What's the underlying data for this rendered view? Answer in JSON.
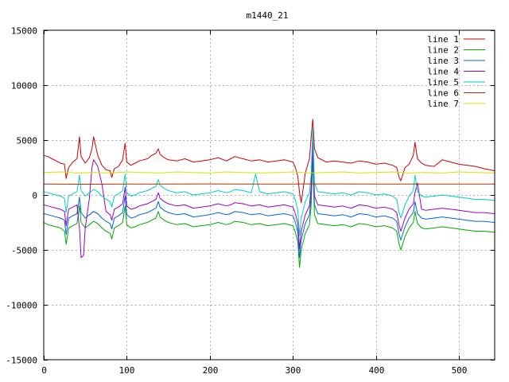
{
  "chart_data": {
    "type": "line",
    "title": "m1440_21",
    "xlabel": "",
    "ylabel": "",
    "xlim": [
      0,
      543
    ],
    "ylim": [
      -15000,
      15000
    ],
    "xticks": [
      0,
      100,
      200,
      300,
      400,
      500
    ],
    "yticks": [
      -15000,
      -10000,
      -5000,
      0,
      5000,
      10000,
      15000
    ],
    "grid": true,
    "legend_position": "top-right",
    "series": [
      {
        "name": "line 1",
        "color": "#cc0000",
        "x": [
          0,
          5,
          10,
          15,
          20,
          25,
          27,
          30,
          35,
          40,
          43,
          45,
          50,
          55,
          58,
          60,
          65,
          70,
          75,
          80,
          82,
          85,
          90,
          95,
          98,
          100,
          105,
          110,
          115,
          120,
          125,
          130,
          135,
          138,
          140,
          145,
          150,
          160,
          170,
          180,
          190,
          200,
          210,
          220,
          225,
          230,
          240,
          250,
          260,
          270,
          280,
          290,
          300,
          303,
          306,
          308,
          310,
          315,
          320,
          322,
          324,
          326,
          330,
          340,
          350,
          360,
          370,
          380,
          390,
          400,
          410,
          420,
          425,
          428,
          430,
          435,
          440,
          445,
          447,
          450,
          455,
          460,
          470,
          480,
          490,
          500,
          510,
          520,
          530,
          543
        ],
        "y": [
          3600,
          3500,
          3300,
          3100,
          2900,
          2800,
          1500,
          2500,
          3000,
          3300,
          5300,
          3500,
          2900,
          3400,
          4200,
          5300,
          3600,
          2700,
          2300,
          2200,
          1600,
          2400,
          2600,
          3200,
          4700,
          3000,
          2700,
          2900,
          3100,
          3200,
          3300,
          3600,
          3800,
          4200,
          3700,
          3400,
          3200,
          3100,
          3300,
          3000,
          3100,
          3200,
          3400,
          3100,
          3300,
          3500,
          3300,
          3100,
          3200,
          3000,
          3100,
          3200,
          3000,
          2500,
          1700,
          200,
          -700,
          2000,
          3300,
          5200,
          6900,
          4200,
          3400,
          3000,
          3100,
          3000,
          2900,
          3100,
          3000,
          2800,
          2900,
          2700,
          2500,
          1600,
          1300,
          2500,
          2800,
          3600,
          4800,
          3300,
          2900,
          2700,
          2600,
          3200,
          3000,
          2800,
          2700,
          2600,
          2400,
          2200
        ]
      },
      {
        "name": "line 2",
        "color": "#00aa00",
        "x": [
          0,
          5,
          10,
          15,
          20,
          25,
          27,
          30,
          35,
          40,
          43,
          45,
          50,
          55,
          60,
          65,
          70,
          75,
          80,
          82,
          85,
          90,
          95,
          98,
          100,
          105,
          110,
          115,
          120,
          125,
          130,
          135,
          138,
          140,
          145,
          150,
          160,
          170,
          180,
          190,
          200,
          210,
          220,
          225,
          230,
          240,
          250,
          260,
          270,
          280,
          290,
          300,
          303,
          306,
          308,
          310,
          315,
          320,
          322,
          324,
          326,
          330,
          340,
          350,
          360,
          370,
          380,
          390,
          400,
          410,
          420,
          425,
          428,
          430,
          435,
          440,
          445,
          447,
          450,
          455,
          460,
          470,
          480,
          490,
          500,
          510,
          520,
          530,
          543
        ],
        "y": [
          -2500,
          -2700,
          -2800,
          -2900,
          -3000,
          -3300,
          -4500,
          -3000,
          -2800,
          -2600,
          -1000,
          -2500,
          -3000,
          -2700,
          -2400,
          -2600,
          -3000,
          -3300,
          -3500,
          -4000,
          -3000,
          -2800,
          -2500,
          -1000,
          -2700,
          -3000,
          -2900,
          -2700,
          -2600,
          -2500,
          -2300,
          -2100,
          -1500,
          -2000,
          -2300,
          -2500,
          -2700,
          -2600,
          -2900,
          -2800,
          -2700,
          -2500,
          -2700,
          -2600,
          -2400,
          -2500,
          -2700,
          -2600,
          -2800,
          -2700,
          -2600,
          -2800,
          -3400,
          -4300,
          -6600,
          -5000,
          -3500,
          -2700,
          -1000,
          3300,
          -1800,
          -2600,
          -2700,
          -2800,
          -2700,
          -2900,
          -2600,
          -2700,
          -2900,
          -2800,
          -3000,
          -3300,
          -4500,
          -5000,
          -3800,
          -3000,
          -2500,
          -1500,
          -2600,
          -3000,
          -3100,
          -3000,
          -2900,
          -3000,
          -3100,
          -3200,
          -3300,
          -3300,
          -3400
        ]
      },
      {
        "name": "line 3",
        "color": "#0066dd",
        "x": [
          0,
          5,
          10,
          15,
          20,
          25,
          27,
          30,
          35,
          40,
          43,
          45,
          50,
          55,
          60,
          65,
          70,
          75,
          80,
          82,
          85,
          90,
          95,
          98,
          100,
          105,
          110,
          115,
          120,
          125,
          130,
          135,
          138,
          140,
          145,
          150,
          160,
          170,
          180,
          190,
          200,
          210,
          220,
          225,
          230,
          240,
          250,
          260,
          270,
          280,
          290,
          300,
          303,
          306,
          308,
          310,
          315,
          320,
          322,
          324,
          326,
          330,
          340,
          350,
          360,
          370,
          380,
          390,
          400,
          410,
          420,
          425,
          428,
          430,
          435,
          440,
          445,
          447,
          450,
          455,
          460,
          470,
          480,
          490,
          500,
          510,
          520,
          530,
          543
        ],
        "y": [
          -1700,
          -1800,
          -1900,
          -2000,
          -2100,
          -2300,
          -3600,
          -2100,
          -1900,
          -1700,
          -200,
          -1600,
          -2100,
          -1800,
          -1500,
          -1700,
          -2100,
          -2400,
          -2600,
          -3100,
          -2100,
          -1900,
          -1600,
          -100,
          -1800,
          -2100,
          -2000,
          -1800,
          -1700,
          -1600,
          -1400,
          -1200,
          -600,
          -1100,
          -1400,
          -1600,
          -1800,
          -1700,
          -2000,
          -1900,
          -1800,
          -1600,
          -1800,
          -1700,
          -1500,
          -1600,
          -1800,
          -1700,
          -1900,
          -1800,
          -1700,
          -1900,
          -2500,
          -3400,
          -5700,
          -4100,
          -2600,
          -1800,
          -100,
          4100,
          -900,
          -1700,
          -1800,
          -1900,
          -1800,
          -2000,
          -1700,
          -1800,
          -2000,
          -1900,
          -2100,
          -2400,
          -3600,
          -4100,
          -2900,
          -2100,
          -1600,
          -600,
          -1700,
          -2100,
          -2200,
          -2100,
          -2000,
          -2100,
          -2200,
          -2300,
          -2400,
          -2400,
          -2500
        ]
      },
      {
        "name": "line 4",
        "color": "#9900cc",
        "x": [
          0,
          5,
          10,
          15,
          20,
          25,
          27,
          30,
          35,
          40,
          43,
          45,
          48,
          50,
          55,
          58,
          60,
          65,
          70,
          75,
          80,
          82,
          85,
          90,
          95,
          98,
          100,
          105,
          110,
          115,
          120,
          125,
          130,
          135,
          138,
          140,
          145,
          150,
          160,
          170,
          180,
          190,
          200,
          210,
          220,
          225,
          230,
          240,
          250,
          260,
          270,
          280,
          290,
          300,
          303,
          306,
          308,
          310,
          315,
          320,
          322,
          324,
          326,
          330,
          340,
          350,
          360,
          370,
          380,
          390,
          400,
          410,
          420,
          425,
          428,
          430,
          435,
          440,
          445,
          447,
          450,
          455,
          460,
          470,
          480,
          490,
          500,
          510,
          520,
          530,
          543
        ],
        "y": [
          -900,
          -1000,
          -1100,
          -1200,
          -1300,
          -1500,
          -2800,
          -1300,
          -1100,
          -900,
          -3000,
          -5700,
          -5500,
          -3000,
          -300,
          2500,
          3200,
          2600,
          1000,
          -1500,
          -1800,
          -2300,
          -1300,
          -1100,
          -800,
          700,
          -1000,
          -1300,
          -1200,
          -1000,
          -900,
          -800,
          -600,
          -400,
          200,
          -300,
          -600,
          -800,
          -1000,
          -900,
          -1200,
          -1100,
          -1000,
          -800,
          -1000,
          -900,
          -700,
          -800,
          -1000,
          -900,
          -1100,
          -1000,
          -900,
          -1100,
          -1700,
          -2600,
          -4900,
          -3300,
          -1800,
          -1000,
          700,
          4900,
          -100,
          -900,
          -1000,
          -1100,
          -1000,
          -1200,
          -900,
          -1000,
          -1200,
          -1100,
          -1300,
          -1600,
          -2800,
          -3300,
          -2100,
          -1300,
          -800,
          200,
          1100,
          -1300,
          -1400,
          -1300,
          -1200,
          -1300,
          -1400,
          -1500,
          -1600,
          -1600,
          -1700
        ]
      },
      {
        "name": "line 5",
        "color": "#00cccc",
        "x": [
          0,
          5,
          10,
          15,
          20,
          25,
          27,
          30,
          35,
          40,
          43,
          45,
          50,
          55,
          60,
          65,
          70,
          75,
          80,
          82,
          85,
          90,
          95,
          98,
          100,
          105,
          110,
          115,
          120,
          125,
          130,
          135,
          138,
          140,
          145,
          150,
          160,
          170,
          180,
          190,
          200,
          210,
          220,
          225,
          230,
          240,
          250,
          255,
          260,
          270,
          280,
          290,
          300,
          303,
          306,
          308,
          310,
          315,
          320,
          322,
          324,
          326,
          330,
          340,
          350,
          360,
          370,
          380,
          390,
          400,
          410,
          420,
          425,
          428,
          430,
          435,
          440,
          445,
          447,
          450,
          455,
          460,
          470,
          480,
          490,
          500,
          510,
          520,
          530,
          543
        ],
        "y": [
          300,
          200,
          100,
          0,
          -100,
          -300,
          -1600,
          -100,
          100,
          300,
          1800,
          400,
          -100,
          200,
          500,
          300,
          -100,
          -400,
          -600,
          -1100,
          -100,
          100,
          400,
          1900,
          200,
          -100,
          0,
          200,
          300,
          400,
          600,
          800,
          1400,
          900,
          600,
          400,
          200,
          300,
          0,
          100,
          200,
          400,
          200,
          300,
          500,
          400,
          200,
          1900,
          300,
          100,
          200,
          300,
          100,
          -500,
          -1400,
          -3700,
          -2100,
          -600,
          200,
          1900,
          6100,
          1100,
          300,
          200,
          100,
          200,
          0,
          300,
          200,
          0,
          100,
          -100,
          -400,
          -1600,
          -2100,
          -900,
          -100,
          400,
          1800,
          300,
          -100,
          -200,
          -100,
          0,
          -100,
          -200,
          -300,
          -400,
          -400,
          -500
        ]
      },
      {
        "name": "line 6",
        "color": "#aa3300",
        "x": [
          0,
          50,
          100,
          150,
          200,
          250,
          300,
          350,
          400,
          450,
          500,
          543
        ],
        "y": [
          1000,
          980,
          1000,
          990,
          1010,
          990,
          1000,
          1010,
          990,
          1000,
          990,
          1000
        ]
      },
      {
        "name": "line 7",
        "color": "#dddd00",
        "x": [
          0,
          20,
          40,
          60,
          80,
          100,
          120,
          140,
          160,
          180,
          200,
          220,
          240,
          260,
          280,
          300,
          320,
          340,
          360,
          380,
          400,
          420,
          440,
          460,
          480,
          500,
          520,
          543
        ],
        "y": [
          2050,
          2100,
          2000,
          2050,
          2000,
          2100,
          2050,
          2000,
          2100,
          2050,
          2000,
          2100,
          2050,
          2000,
          2050,
          2100,
          2000,
          2050,
          2100,
          2000,
          2050,
          2100,
          2000,
          2050,
          2000,
          2100,
          2050,
          2000
        ]
      }
    ]
  }
}
